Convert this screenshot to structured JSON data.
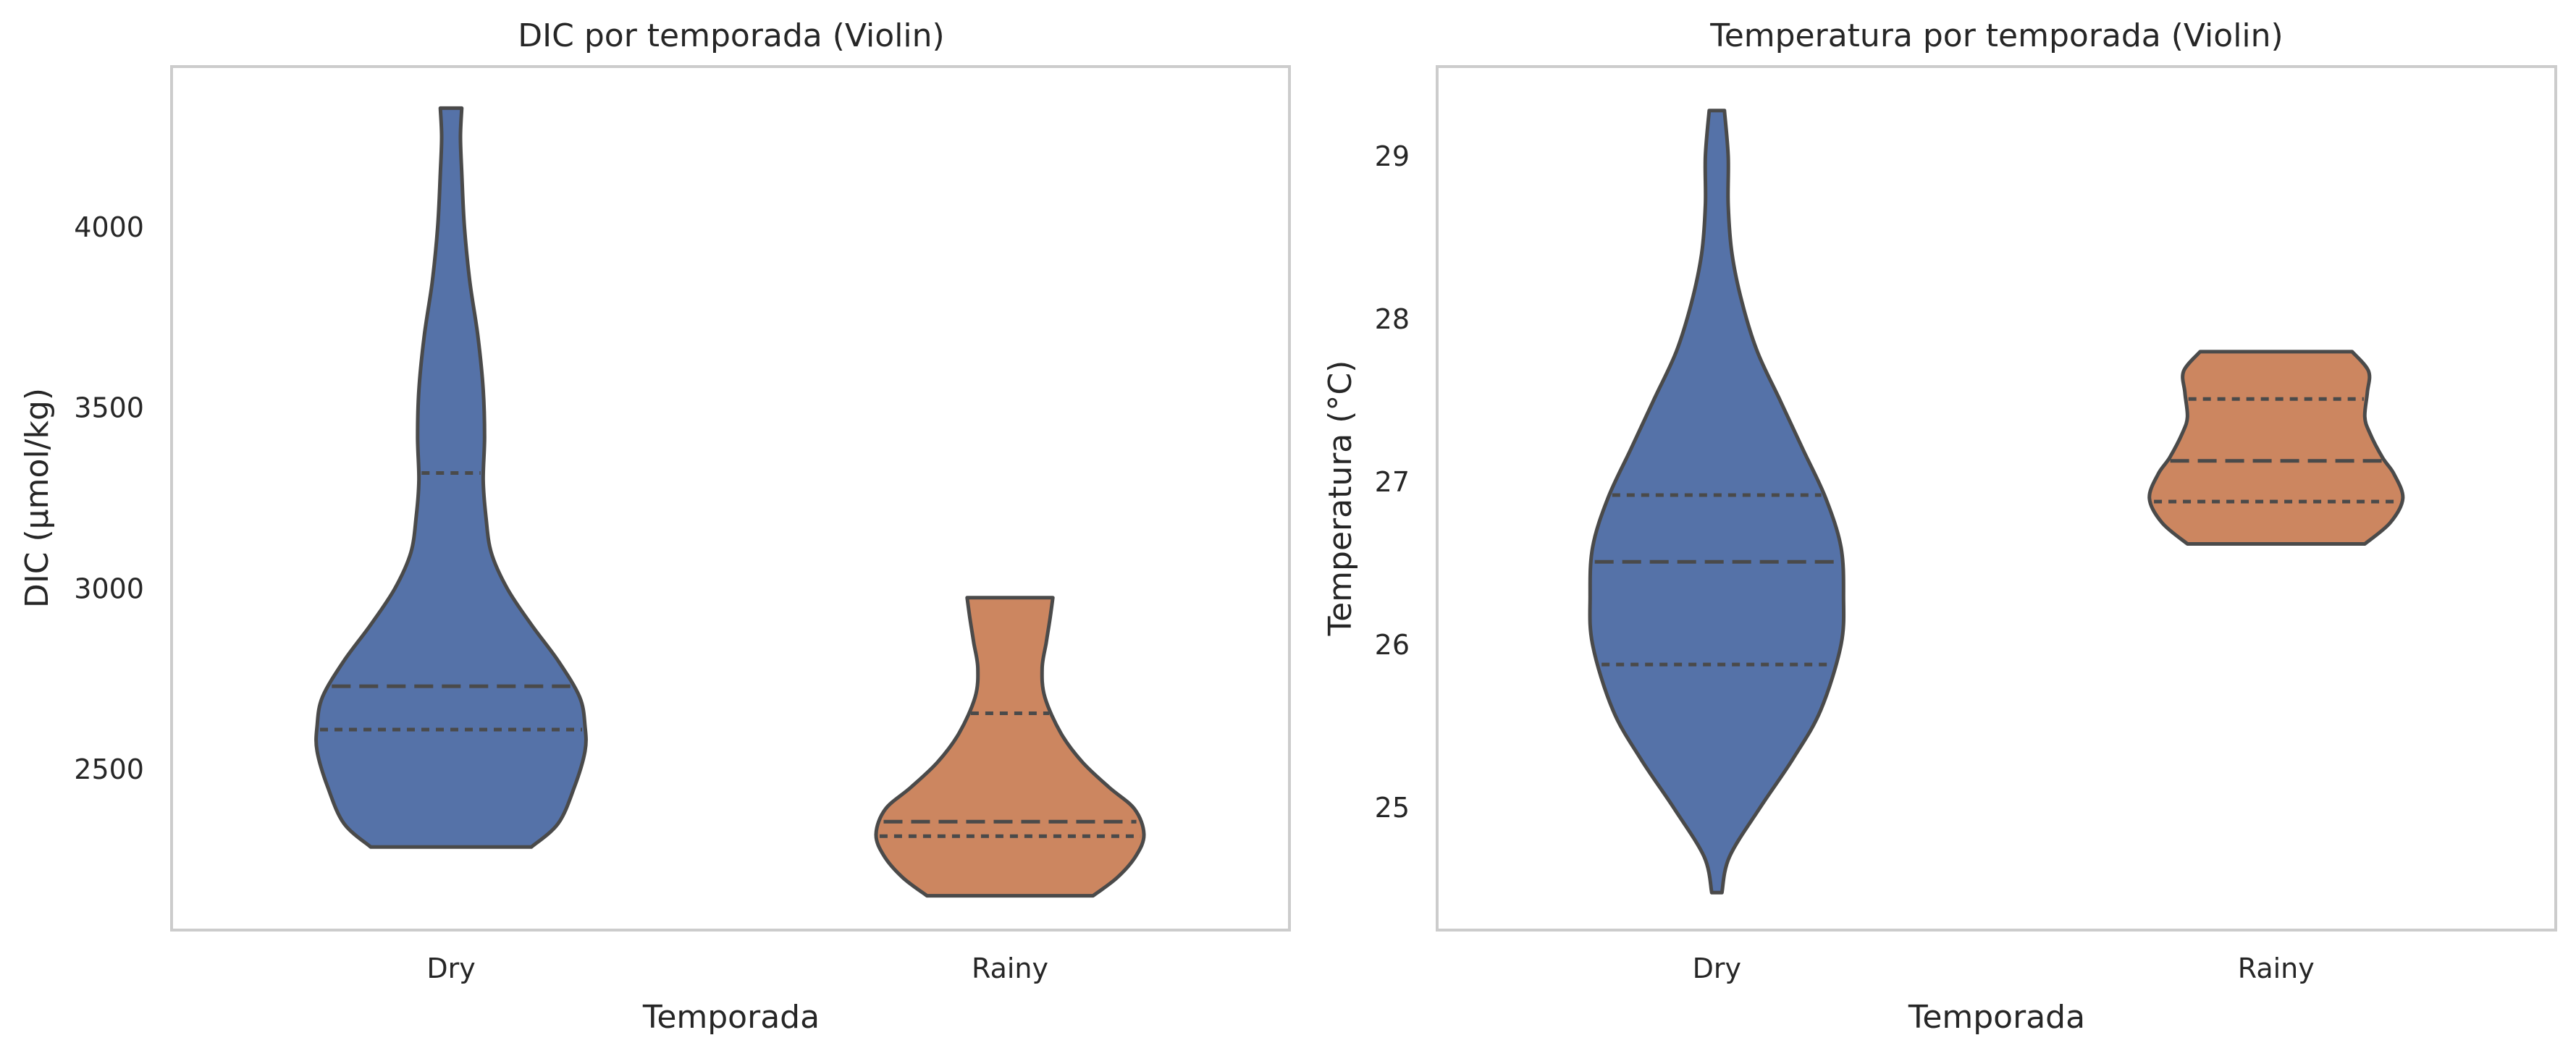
{
  "chart_data": [
    {
      "type": "violin",
      "title": "DIC por temporada (Violin)",
      "xlabel": "Temporada",
      "ylabel": "DIC (µmol/kg)",
      "categories": [
        "Dry",
        "Rainy"
      ],
      "yticks": [
        2500,
        3000,
        3500,
        4000
      ],
      "ylim": [
        2055,
        4445
      ],
      "grid": false,
      "inner": "quartile",
      "colors": [
        "#5572a8",
        "#cc8660"
      ],
      "series": [
        {
          "category": "Dry",
          "min": 2285,
          "q1": 2610,
          "median": 2730,
          "q3": 3320,
          "max": 4330,
          "density": [
            [
              2285,
              0.6
            ],
            [
              2350,
              0.8
            ],
            [
              2450,
              0.92
            ],
            [
              2550,
              1.0
            ],
            [
              2620,
              1.0
            ],
            [
              2700,
              0.96
            ],
            [
              2800,
              0.8
            ],
            [
              2900,
              0.6
            ],
            [
              3000,
              0.42
            ],
            [
              3100,
              0.3
            ],
            [
              3200,
              0.26
            ],
            [
              3300,
              0.24
            ],
            [
              3420,
              0.25
            ],
            [
              3550,
              0.24
            ],
            [
              3700,
              0.2
            ],
            [
              3850,
              0.14
            ],
            [
              4000,
              0.1
            ],
            [
              4150,
              0.08
            ],
            [
              4250,
              0.07
            ],
            [
              4330,
              0.08
            ]
          ]
        },
        {
          "category": "Rainy",
          "min": 2150,
          "q1": 2315,
          "median": 2355,
          "q3": 2655,
          "max": 2975,
          "density": [
            [
              2150,
              0.62
            ],
            [
              2200,
              0.8
            ],
            [
              2260,
              0.94
            ],
            [
              2320,
              1.0
            ],
            [
              2390,
              0.93
            ],
            [
              2450,
              0.74
            ],
            [
              2520,
              0.54
            ],
            [
              2600,
              0.38
            ],
            [
              2700,
              0.26
            ],
            [
              2780,
              0.24
            ],
            [
              2850,
              0.27
            ],
            [
              2920,
              0.3
            ],
            [
              2975,
              0.32
            ]
          ]
        }
      ]
    },
    {
      "type": "violin",
      "title": "Temperatura por temporada (Violin)",
      "xlabel": "Temporada",
      "ylabel": "Temperatura (°C)",
      "categories": [
        "Dry",
        "Rainy"
      ],
      "yticks": [
        25,
        26,
        27,
        28,
        29
      ],
      "ylim": [
        24.25,
        29.55
      ],
      "grid": false,
      "inner": "quartile",
      "colors": [
        "#5572a8",
        "#cc8660"
      ],
      "series": [
        {
          "category": "Dry",
          "min": 24.48,
          "q1": 25.88,
          "median": 26.51,
          "q3": 26.92,
          "max": 29.28,
          "density": [
            [
              24.48,
              0.04
            ],
            [
              24.7,
              0.1
            ],
            [
              25.0,
              0.34
            ],
            [
              25.3,
              0.6
            ],
            [
              25.6,
              0.82
            ],
            [
              26.0,
              0.98
            ],
            [
              26.3,
              1.0
            ],
            [
              26.6,
              0.98
            ],
            [
              26.9,
              0.86
            ],
            [
              27.2,
              0.68
            ],
            [
              27.5,
              0.5
            ],
            [
              27.8,
              0.32
            ],
            [
              28.1,
              0.2
            ],
            [
              28.4,
              0.12
            ],
            [
              28.7,
              0.09
            ],
            [
              29.0,
              0.09
            ],
            [
              29.28,
              0.06
            ]
          ]
        },
        {
          "category": "Rainy",
          "min": 26.62,
          "q1": 26.88,
          "median": 27.13,
          "q3": 27.51,
          "max": 27.8,
          "density": [
            [
              26.62,
              0.7
            ],
            [
              26.75,
              0.9
            ],
            [
              26.9,
              1.0
            ],
            [
              27.05,
              0.93
            ],
            [
              27.15,
              0.84
            ],
            [
              27.3,
              0.74
            ],
            [
              27.4,
              0.7
            ],
            [
              27.55,
              0.72
            ],
            [
              27.68,
              0.73
            ],
            [
              27.8,
              0.6
            ]
          ]
        }
      ]
    }
  ]
}
